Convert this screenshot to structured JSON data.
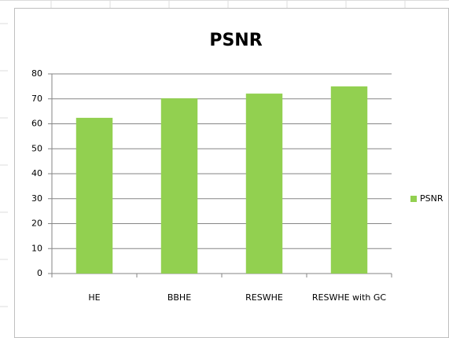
{
  "chart_data": {
    "type": "bar",
    "title": "PSNR",
    "categories": [
      "HE",
      "BBHE",
      "RESWHE",
      "RESWHE with GC"
    ],
    "series": [
      {
        "name": "PSNR",
        "color": "#92d050",
        "values": [
          62.4,
          70.2,
          72.1,
          75
        ]
      }
    ],
    "ylim": [
      0,
      80
    ],
    "yticks": [
      0,
      10,
      20,
      30,
      40,
      50,
      60,
      70,
      80
    ],
    "grid": true,
    "legend": "right"
  }
}
